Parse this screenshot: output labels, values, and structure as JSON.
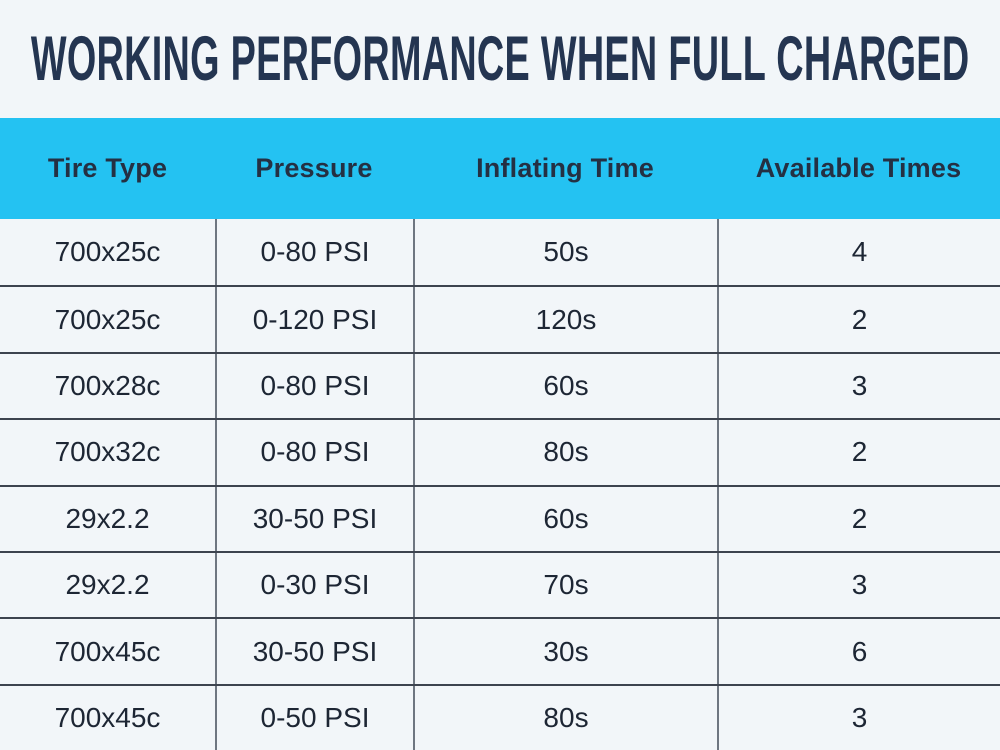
{
  "title": "WORKING PERFORMANCE WHEN FULL CHARGED",
  "table": {
    "columns": [
      "Tire Type",
      "Pressure",
      "Inflating Time",
      "Available Times"
    ],
    "rows": [
      [
        "700x25c",
        "0-80 PSI",
        "50s",
        "4"
      ],
      [
        "700x25c",
        "0-120 PSI",
        "120s",
        "2"
      ],
      [
        "700x28c",
        "0-80 PSI",
        "60s",
        "3"
      ],
      [
        "700x32c",
        "0-80 PSI",
        "80s",
        "2"
      ],
      [
        "29x2.2",
        "30-50 PSI",
        "60s",
        "2"
      ],
      [
        "29x2.2",
        "0-30 PSI",
        "70s",
        "3"
      ],
      [
        "700x45c",
        "30-50 PSI",
        "30s",
        "6"
      ],
      [
        "700x45c",
        "0-50 PSI",
        "80s",
        "3"
      ]
    ]
  },
  "colors": {
    "page_background": "#f2f6f9",
    "header_background": "#24c2f2",
    "title_text": "#243551",
    "header_text": "#243043",
    "cell_text": "#1d2634",
    "row_divider": "#3d444f",
    "column_divider": "#6e7681"
  },
  "chart_data": {
    "type": "table",
    "title": "WORKING PERFORMANCE WHEN FULL CHARGED",
    "columns": [
      "Tire Type",
      "Pressure",
      "Inflating Time",
      "Available Times"
    ],
    "rows": [
      [
        "700x25c",
        "0-80 PSI",
        "50s",
        "4"
      ],
      [
        "700x25c",
        "0-120 PSI",
        "120s",
        "2"
      ],
      [
        "700x28c",
        "0-80 PSI",
        "60s",
        "3"
      ],
      [
        "700x32c",
        "0-80 PSI",
        "80s",
        "2"
      ],
      [
        "29x2.2",
        "30-50 PSI",
        "60s",
        "2"
      ],
      [
        "29x2.2",
        "0-30 PSI",
        "70s",
        "3"
      ],
      [
        "700x45c",
        "30-50 PSI",
        "30s",
        "6"
      ],
      [
        "700x45c",
        "0-50 PSI",
        "80s",
        "3"
      ]
    ]
  }
}
